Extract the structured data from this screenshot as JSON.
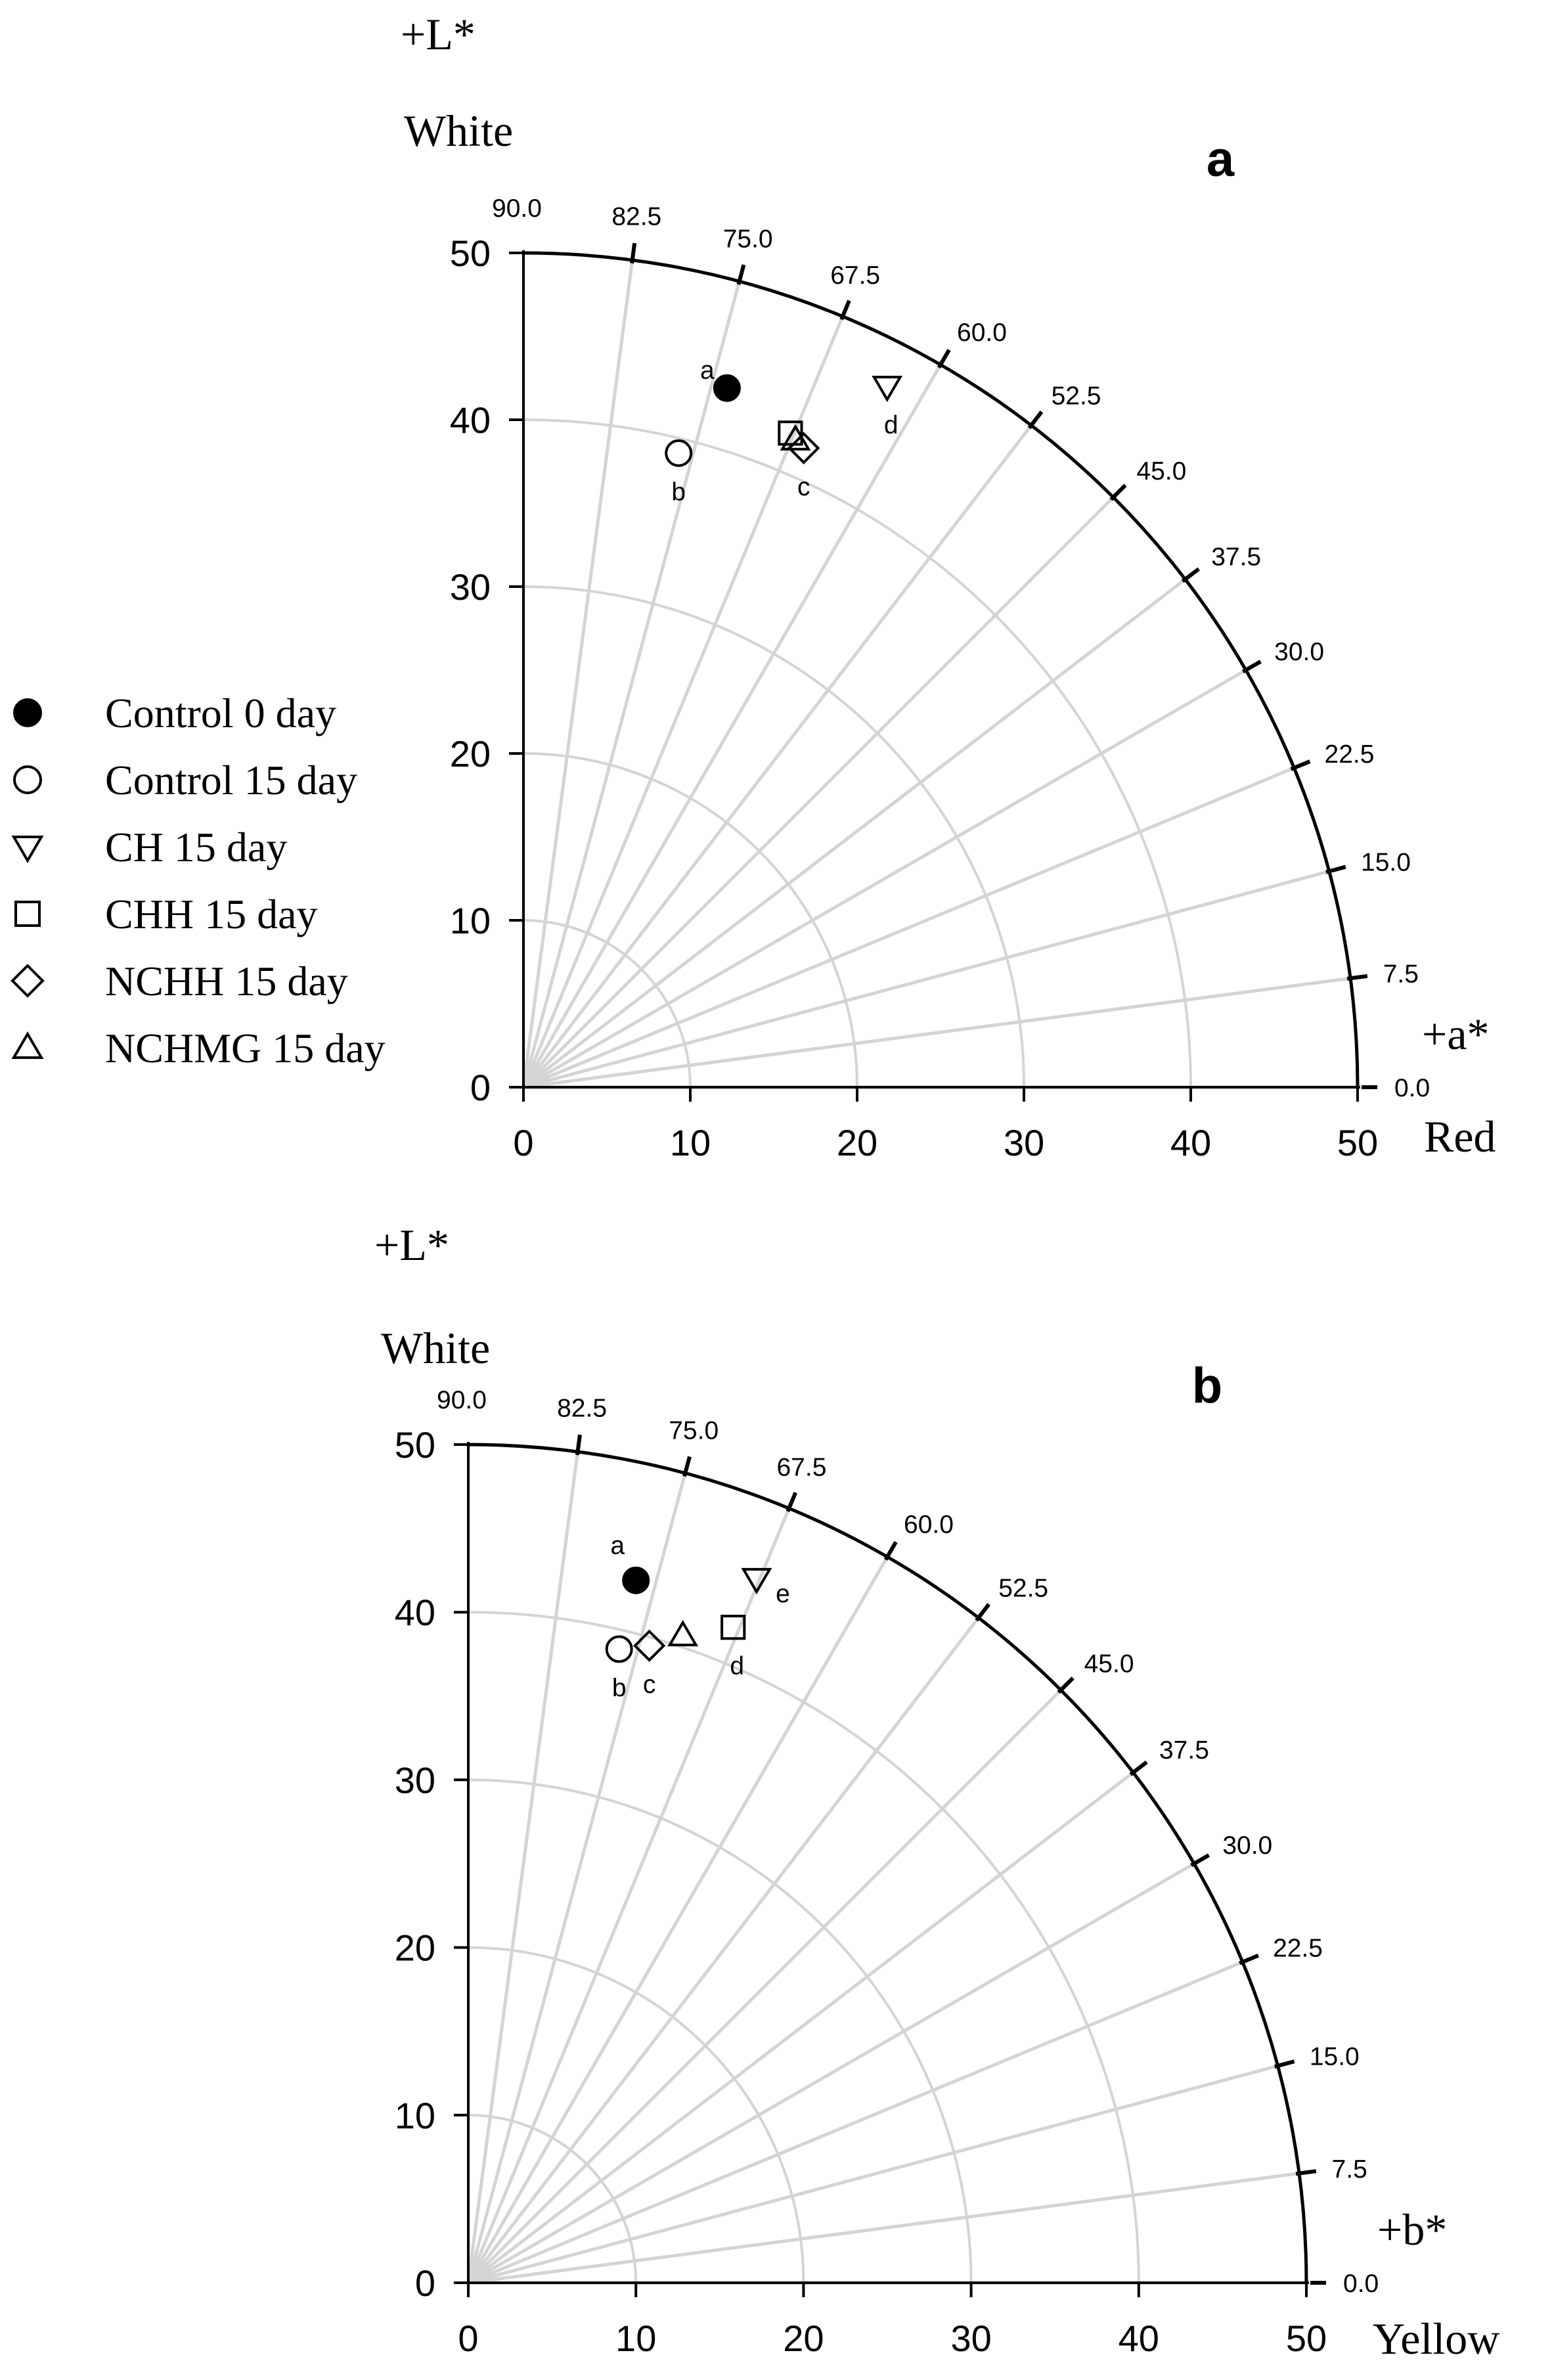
{
  "legend": {
    "items": [
      {
        "id": "control0",
        "label": "Control 0 day",
        "marker": "circle-filled"
      },
      {
        "id": "control15",
        "label": "Control 15 day",
        "marker": "circle-open"
      },
      {
        "id": "ch15",
        "label": "CH 15 day",
        "marker": "triangle-down"
      },
      {
        "id": "chh15",
        "label": "CHH 15 day",
        "marker": "square"
      },
      {
        "id": "nchh15",
        "label": "NCHH 15 day",
        "marker": "diamond"
      },
      {
        "id": "nchmg15",
        "label": "NCHMG 15 day",
        "marker": "triangle-up"
      }
    ]
  },
  "chart_data": [
    {
      "type": "scatter",
      "panel_letter": "a",
      "top_axis_label": "+L*",
      "top_axis_word": "White",
      "side_axis_label": "+a*",
      "x_axis_word": "Red",
      "xlim": [
        0,
        50
      ],
      "ylim": [
        0,
        50
      ],
      "x_ticks": [
        "0",
        "10",
        "20",
        "30",
        "40",
        "50"
      ],
      "y_ticks": [
        "0",
        "10",
        "20",
        "30",
        "40",
        "50"
      ],
      "angle_ticks": [
        "0.0",
        "7.5",
        "15.0",
        "22.5",
        "30.0",
        "37.5",
        "45.0",
        "52.5",
        "60.0",
        "67.5",
        "75.0",
        "82.5",
        "90.0"
      ],
      "points": [
        {
          "series": "control0",
          "x": 12.2,
          "y": 41.9,
          "label": "a"
        },
        {
          "series": "control15",
          "x": 9.3,
          "y": 38.0,
          "label": "b"
        },
        {
          "series": "ch15",
          "x": 21.8,
          "y": 42.0,
          "label": "d"
        },
        {
          "series": "chh15",
          "x": 16.0,
          "y": 39.2,
          "label": ""
        },
        {
          "series": "nchmg15",
          "x": 16.3,
          "y": 38.8,
          "label": ""
        },
        {
          "series": "nchh15",
          "x": 16.8,
          "y": 38.3,
          "label": "c"
        }
      ]
    },
    {
      "type": "scatter",
      "panel_letter": "b",
      "top_axis_label": "+L*",
      "top_axis_word": "White",
      "side_axis_label": "+b*",
      "x_axis_word": "Yellow",
      "xlim": [
        0,
        50
      ],
      "ylim": [
        0,
        50
      ],
      "x_ticks": [
        "0",
        "10",
        "20",
        "30",
        "40",
        "50"
      ],
      "y_ticks": [
        "0",
        "10",
        "20",
        "30",
        "40",
        "50"
      ],
      "angle_ticks": [
        "0.0",
        "7.5",
        "15.0",
        "22.5",
        "30.0",
        "37.5",
        "45.0",
        "52.5",
        "60.0",
        "67.5",
        "75.0",
        "82.5",
        "90.0"
      ],
      "points": [
        {
          "series": "control0",
          "x": 10.0,
          "y": 41.9,
          "label": "a"
        },
        {
          "series": "control15",
          "x": 9.0,
          "y": 37.8,
          "label": "b"
        },
        {
          "series": "nchh15",
          "x": 10.8,
          "y": 38.0,
          "label": "c"
        },
        {
          "series": "nchmg15",
          "x": 12.8,
          "y": 38.6,
          "label": ""
        },
        {
          "series": "chh15",
          "x": 15.8,
          "y": 39.1,
          "label": "d"
        },
        {
          "series": "ch15",
          "x": 17.2,
          "y": 42.0,
          "label": "e"
        }
      ]
    }
  ]
}
